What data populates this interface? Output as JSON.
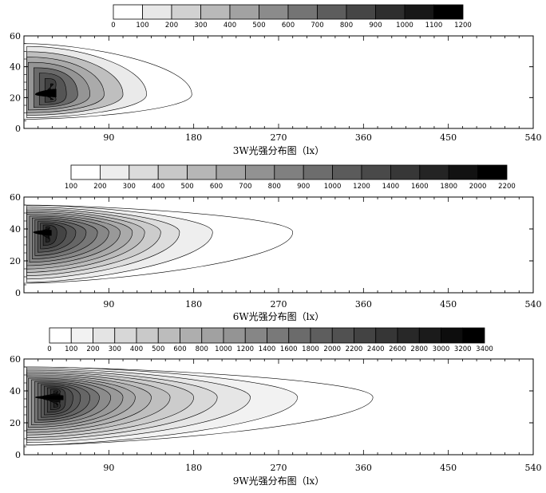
{
  "chart_data": [
    {
      "type": "heatmap",
      "title": "",
      "xlabel": "3W光强分布图（lx）",
      "ylabel": "",
      "xlim": [
        0,
        540
      ],
      "ylim": [
        0,
        60
      ],
      "xticks": [
        "90",
        "180",
        "270",
        "360",
        "450",
        "540"
      ],
      "yticks": [
        "0",
        "20",
        "40",
        "60"
      ],
      "colorbar_labels": [
        "0",
        "100",
        "200",
        "300",
        "400",
        "500",
        "600",
        "700",
        "800",
        "900",
        "1000",
        "1100",
        "1200"
      ],
      "levels": [
        0,
        100,
        200,
        300,
        400,
        500,
        600,
        700,
        800,
        900,
        1000,
        1100,
        1200
      ],
      "peak": {
        "x": 40,
        "y": 22,
        "value": 1200
      },
      "contour_extent_x": [
        12,
        23,
        33,
        45,
        57,
        70,
        85,
        105,
        130,
        178
      ],
      "data_region": {
        "x": [
          5,
          175
        ],
        "y": [
          6,
          55
        ]
      }
    },
    {
      "type": "heatmap",
      "title": "",
      "xlabel": "6W光强分布图（lx）",
      "ylabel": "",
      "xlim": [
        0,
        540
      ],
      "ylim": [
        0,
        60
      ],
      "xticks": [
        "90",
        "180",
        "270",
        "360",
        "450",
        "540"
      ],
      "yticks": [
        "0",
        "20",
        "40",
        "60"
      ],
      "colorbar_labels": [
        "100",
        "200",
        "300",
        "400",
        "500",
        "600",
        "700",
        "800",
        "900",
        "1000",
        "1200",
        "1400",
        "1600",
        "1800",
        "2000",
        "2200"
      ],
      "levels": [
        100,
        200,
        300,
        400,
        500,
        600,
        700,
        800,
        900,
        1000,
        1200,
        1400,
        1600,
        1800,
        2000,
        2200
      ],
      "peak": {
        "x": 32,
        "y": 38,
        "value": 2200
      },
      "contour_extent_x": [
        10,
        18,
        26,
        35,
        45,
        55,
        66,
        78,
        90,
        102,
        115,
        128,
        145,
        165,
        200,
        285
      ],
      "data_region": {
        "x": [
          5,
          285
        ],
        "y": [
          6,
          55
        ]
      }
    },
    {
      "type": "heatmap",
      "title": "",
      "xlabel": "9W光强分布图（lx）",
      "ylabel": "",
      "xlim": [
        0,
        540
      ],
      "ylim": [
        0,
        60
      ],
      "xticks": [
        "90",
        "180",
        "270",
        "360",
        "450",
        "540"
      ],
      "yticks": [
        "0",
        "20",
        "40",
        "60"
      ],
      "colorbar_labels": [
        "0",
        "100",
        "200",
        "300",
        "400",
        "500",
        "600",
        "800",
        "1000",
        "1200",
        "1400",
        "1600",
        "1800",
        "2000",
        "2200",
        "2400",
        "2600",
        "2800",
        "3000",
        "3200",
        "3400"
      ],
      "levels": [
        0,
        100,
        200,
        300,
        400,
        500,
        600,
        800,
        1000,
        1200,
        1400,
        1600,
        1800,
        2000,
        2200,
        2400,
        2600,
        2800,
        3000,
        3200,
        3400
      ],
      "peak": {
        "x": 45,
        "y": 36,
        "value": 3400
      },
      "contour_extent_x": [
        12,
        18,
        24,
        30,
        37,
        44,
        52,
        60,
        70,
        80,
        92,
        105,
        118,
        135,
        155,
        180,
        205,
        240,
        290,
        370
      ],
      "data_region": {
        "x": [
          5,
          370
        ],
        "y": [
          6,
          55
        ]
      }
    }
  ],
  "colors": {
    "low": "#ffffff",
    "high": "#000000",
    "line": "#000000"
  }
}
